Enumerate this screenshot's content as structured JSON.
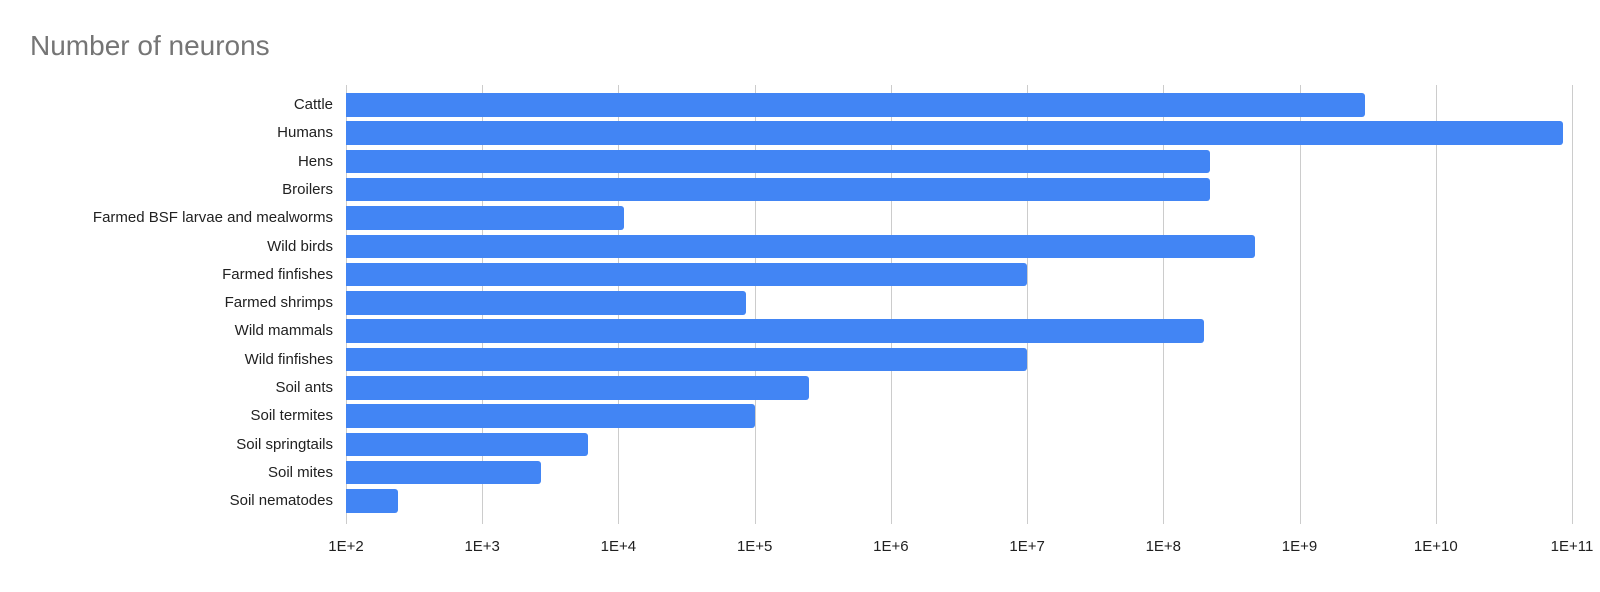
{
  "chart_data": {
    "type": "bar",
    "orientation": "horizontal",
    "title": "Number of neurons",
    "x_scale": "log",
    "grid": true,
    "legend": "none",
    "xlim_exp": [
      2,
      11
    ],
    "categories": [
      "Cattle",
      "Humans",
      "Hens",
      "Broilers",
      "Farmed BSF larvae and mealworms",
      "Wild birds",
      "Farmed finfishes",
      "Farmed shrimps",
      "Wild mammals",
      "Wild finfishes",
      "Soil ants",
      "Soil termites",
      "Soil springtails",
      "Soil mites",
      "Soil nematodes"
    ],
    "values": [
      3000000000.0,
      86000000000.0,
      220000000.0,
      220000000.0,
      11000.0,
      470000000.0,
      10000000.0,
      87000.0,
      200000000.0,
      10000000.0,
      250000.0,
      100000.0,
      6000.0,
      2700.0,
      240.0
    ],
    "x_ticks": [
      {
        "label": "1E+2",
        "exp": 2
      },
      {
        "label": "1E+3",
        "exp": 3
      },
      {
        "label": "1E+4",
        "exp": 4
      },
      {
        "label": "1E+5",
        "exp": 5
      },
      {
        "label": "1E+6",
        "exp": 6
      },
      {
        "label": "1E+7",
        "exp": 7
      },
      {
        "label": "1E+8",
        "exp": 8
      },
      {
        "label": "1E+9",
        "exp": 9
      },
      {
        "label": "1E+10",
        "exp": 10
      },
      {
        "label": "1E+11",
        "exp": 11
      }
    ],
    "colors": {
      "bar": "#4285f4",
      "gridline": "#cccccc",
      "title": "#757575",
      "axis_label": "#212121",
      "background": "#ffffff"
    }
  }
}
